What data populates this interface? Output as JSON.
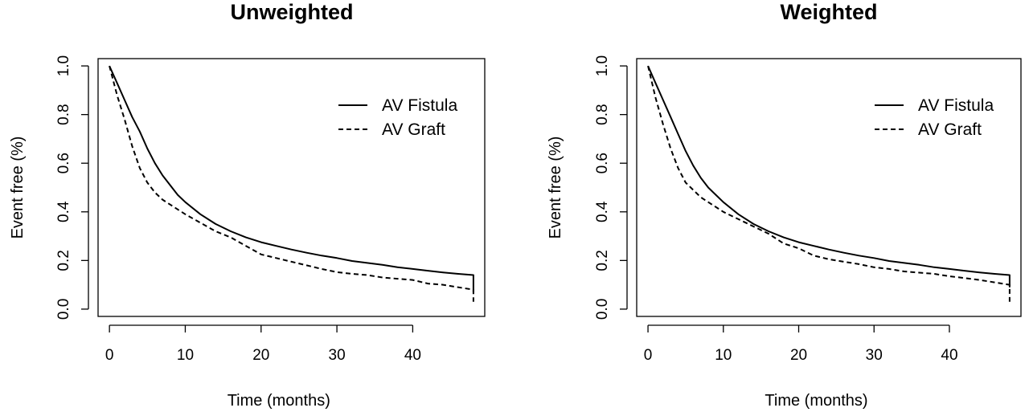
{
  "chart_data": [
    {
      "type": "line",
      "title": "Unweighted",
      "xlabel": "Time (months)",
      "ylabel": "Event free (%)",
      "xlim": [
        -1.5,
        49.5
      ],
      "ylim": [
        -0.03,
        1.03
      ],
      "x_ticks": [
        "0",
        "10",
        "20",
        "30",
        "40"
      ],
      "x_tick_values": [
        0,
        10,
        20,
        30,
        40
      ],
      "y_ticks": [
        "0.0",
        "0.2",
        "0.4",
        "0.6",
        "0.8",
        "1.0"
      ],
      "y_tick_values": [
        0,
        0.2,
        0.4,
        0.6,
        0.8,
        1.0
      ],
      "legend_position": "top-right",
      "series": [
        {
          "name": "AV Fistula",
          "line_style": "solid",
          "end_drop": 0.07,
          "x": [
            0,
            1,
            2,
            3,
            4,
            5,
            6,
            7,
            8,
            9,
            10,
            12,
            14,
            16,
            18,
            20,
            22,
            24,
            26,
            28,
            30,
            32,
            34,
            36,
            38,
            40,
            42,
            44,
            46,
            48
          ],
          "y": [
            1.0,
            0.93,
            0.86,
            0.79,
            0.73,
            0.66,
            0.6,
            0.55,
            0.51,
            0.47,
            0.44,
            0.39,
            0.35,
            0.32,
            0.295,
            0.275,
            0.26,
            0.245,
            0.232,
            0.22,
            0.21,
            0.198,
            0.19,
            0.182,
            0.172,
            0.165,
            0.158,
            0.151,
            0.145,
            0.14
          ]
        },
        {
          "name": "AV Graft",
          "line_style": "dashed",
          "end_drop": 0.03,
          "x": [
            0,
            1,
            2,
            3,
            4,
            5,
            6,
            7,
            8,
            10,
            12,
            14,
            16,
            18,
            20,
            22,
            24,
            26,
            28,
            30,
            32,
            34,
            36,
            38,
            40,
            42,
            44,
            46,
            48
          ],
          "y": [
            1.0,
            0.88,
            0.78,
            0.67,
            0.58,
            0.52,
            0.48,
            0.45,
            0.43,
            0.39,
            0.355,
            0.32,
            0.295,
            0.26,
            0.225,
            0.21,
            0.195,
            0.18,
            0.165,
            0.152,
            0.145,
            0.14,
            0.13,
            0.125,
            0.12,
            0.105,
            0.1,
            0.09,
            0.08
          ]
        }
      ]
    },
    {
      "type": "line",
      "title": "Weighted",
      "xlabel": "Time (months)",
      "ylabel": "Event free (%)",
      "xlim": [
        -1.5,
        49.5
      ],
      "ylim": [
        -0.03,
        1.03
      ],
      "x_ticks": [
        "0",
        "10",
        "20",
        "30",
        "40"
      ],
      "x_tick_values": [
        0,
        10,
        20,
        30,
        40
      ],
      "y_ticks": [
        "0.0",
        "0.2",
        "0.4",
        "0.6",
        "0.8",
        "1.0"
      ],
      "y_tick_values": [
        0,
        0.2,
        0.4,
        0.6,
        0.8,
        1.0
      ],
      "legend_position": "top-right",
      "series": [
        {
          "name": "AV Fistula",
          "line_style": "solid",
          "end_drop": 0.09,
          "x": [
            0,
            1,
            2,
            3,
            4,
            5,
            6,
            7,
            8,
            9,
            10,
            12,
            14,
            16,
            18,
            20,
            22,
            24,
            26,
            28,
            30,
            32,
            34,
            36,
            38,
            40,
            42,
            44,
            46,
            48
          ],
          "y": [
            1.0,
            0.93,
            0.86,
            0.79,
            0.72,
            0.65,
            0.59,
            0.54,
            0.5,
            0.47,
            0.44,
            0.39,
            0.35,
            0.32,
            0.295,
            0.275,
            0.26,
            0.245,
            0.232,
            0.22,
            0.21,
            0.198,
            0.19,
            0.182,
            0.172,
            0.165,
            0.158,
            0.151,
            0.145,
            0.14
          ]
        },
        {
          "name": "AV Graft",
          "line_style": "dashed",
          "end_drop": 0.03,
          "x": [
            0,
            1,
            2,
            3,
            4,
            5,
            6,
            7,
            8,
            10,
            12,
            14,
            16,
            18,
            20,
            22,
            24,
            26,
            28,
            30,
            32,
            34,
            36,
            38,
            40,
            42,
            44,
            46,
            48
          ],
          "y": [
            1.0,
            0.87,
            0.76,
            0.66,
            0.58,
            0.52,
            0.49,
            0.46,
            0.44,
            0.4,
            0.37,
            0.34,
            0.31,
            0.27,
            0.25,
            0.22,
            0.205,
            0.195,
            0.185,
            0.172,
            0.165,
            0.155,
            0.15,
            0.145,
            0.135,
            0.128,
            0.12,
            0.11,
            0.1
          ]
        }
      ]
    }
  ]
}
